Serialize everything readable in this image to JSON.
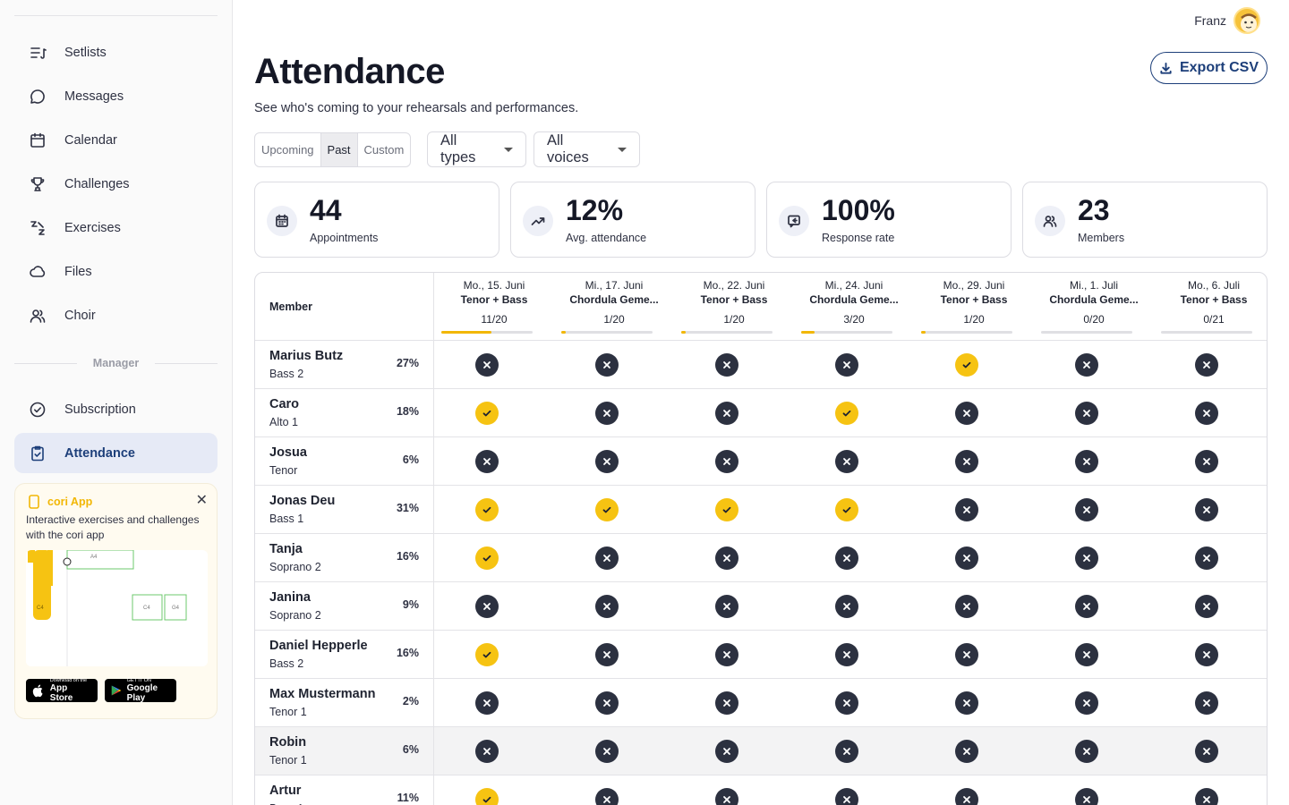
{
  "sidebar": {
    "items": [
      {
        "label": "Setlists",
        "icon": "setlist-icon"
      },
      {
        "label": "Messages",
        "icon": "message-icon"
      },
      {
        "label": "Calendar",
        "icon": "calendar-icon"
      },
      {
        "label": "Challenges",
        "icon": "trophy-icon"
      },
      {
        "label": "Exercises",
        "icon": "exercises-icon"
      },
      {
        "label": "Files",
        "icon": "cloud-icon"
      },
      {
        "label": "Choir",
        "icon": "users-icon"
      }
    ],
    "section_label": "Manager",
    "manager_items": [
      {
        "label": "Subscription",
        "icon": "check-circle-icon"
      },
      {
        "label": "Attendance",
        "icon": "clipboard-check-icon",
        "active": true
      }
    ],
    "promo": {
      "title": "cori App",
      "description": "Interactive exercises and challenges with the cori app",
      "close": "✕",
      "app_store_small": "Download on the",
      "app_store_big": "App Store",
      "google_small": "GET IT ON",
      "google_big": "Google Play",
      "staff_notes": [
        "A4",
        "C4",
        "C4",
        "G4"
      ]
    }
  },
  "header": {
    "user_name": "Franz",
    "title": "Attendance",
    "subtitle": "See who's coming to your rehearsals and performances.",
    "export_label": "Export CSV"
  },
  "filters": {
    "segments": [
      "Upcoming",
      "Past",
      "Custom"
    ],
    "selected_segment": "Past",
    "type_select": "All types",
    "voice_select": "All voices"
  },
  "stats": [
    {
      "value": "44",
      "label": "Appointments",
      "icon": "calendar-icon"
    },
    {
      "value": "12%",
      "label": "Avg. attendance",
      "icon": "trending-up-icon"
    },
    {
      "value": "100%",
      "label": "Response rate",
      "icon": "reply-icon"
    },
    {
      "value": "23",
      "label": "Members",
      "icon": "users-icon"
    }
  ],
  "table": {
    "member_header": "Member",
    "columns": [
      {
        "date": "Mo., 15. Juni",
        "title": "Tenor + Bass",
        "ratio": "11/20",
        "fill": 0.55
      },
      {
        "date": "Mi., 17. Juni",
        "title": "Chordula Geme...",
        "ratio": "1/20",
        "fill": 0.05
      },
      {
        "date": "Mo., 22. Juni",
        "title": "Tenor + Bass",
        "ratio": "1/20",
        "fill": 0.05
      },
      {
        "date": "Mi., 24. Juni",
        "title": "Chordula Geme...",
        "ratio": "3/20",
        "fill": 0.15
      },
      {
        "date": "Mo., 29. Juni",
        "title": "Tenor + Bass",
        "ratio": "1/20",
        "fill": 0.05
      },
      {
        "date": "Mi., 1. Juli",
        "title": "Chordula Geme...",
        "ratio": "0/20",
        "fill": 0
      },
      {
        "date": "Mo., 6. Juli",
        "title": "Tenor + Bass",
        "ratio": "0/21",
        "fill": 0
      }
    ],
    "rows": [
      {
        "name": "Marius Butz",
        "voice": "Bass 2",
        "pct": "27%",
        "att": [
          0,
          0,
          0,
          0,
          1,
          0,
          0
        ]
      },
      {
        "name": "Caro",
        "voice": "Alto 1",
        "pct": "18%",
        "att": [
          1,
          0,
          0,
          1,
          0,
          0,
          0
        ]
      },
      {
        "name": "Josua",
        "voice": "Tenor",
        "pct": "6%",
        "att": [
          0,
          0,
          0,
          0,
          0,
          0,
          0
        ]
      },
      {
        "name": "Jonas Deu",
        "voice": "Bass 1",
        "pct": "31%",
        "att": [
          1,
          1,
          1,
          1,
          0,
          0,
          0
        ]
      },
      {
        "name": "Tanja",
        "voice": "Soprano 2",
        "pct": "16%",
        "att": [
          1,
          0,
          0,
          0,
          0,
          0,
          0
        ]
      },
      {
        "name": "Janina",
        "voice": "Soprano 2",
        "pct": "9%",
        "att": [
          0,
          0,
          0,
          0,
          0,
          0,
          0
        ]
      },
      {
        "name": "Daniel Hepperle",
        "voice": "Bass 2",
        "pct": "16%",
        "att": [
          1,
          0,
          0,
          0,
          0,
          0,
          0
        ]
      },
      {
        "name": "Max Mustermann",
        "voice": "Tenor 1",
        "pct": "2%",
        "att": [
          0,
          0,
          0,
          0,
          0,
          0,
          0
        ]
      },
      {
        "name": "Robin",
        "voice": "Tenor 1",
        "pct": "6%",
        "att": [
          0,
          0,
          0,
          0,
          0,
          0,
          0
        ],
        "highlight": true
      },
      {
        "name": "Artur",
        "voice": "Bass 1",
        "pct": "11%",
        "att": [
          1,
          0,
          0,
          0,
          0,
          0,
          0
        ]
      }
    ]
  },
  "colors": {
    "accent": "#1d3f7a",
    "yes": "#f6c312",
    "no": "#2c3140",
    "bar": "#f2b705"
  }
}
